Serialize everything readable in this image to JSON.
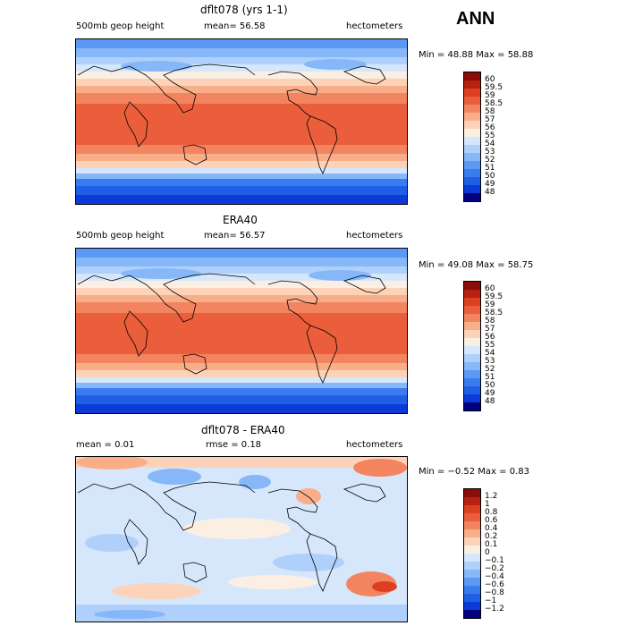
{
  "season": "ANN",
  "colors": {
    "abs_scale": [
      "#000080",
      "#0c3ad6",
      "#1f5fe6",
      "#3a7bf0",
      "#5c99f5",
      "#86b7f8",
      "#afd0fa",
      "#d6e7fc",
      "#fbefe3",
      "#fcd3b8",
      "#f9ae8a",
      "#f38460",
      "#ea5e3c",
      "#dd4020",
      "#b8200f",
      "#8a0d0a"
    ],
    "diff_scale": [
      "#000080",
      "#0c3ad6",
      "#1f5fe6",
      "#3a7bf0",
      "#5c99f5",
      "#86b7f8",
      "#afd0fa",
      "#d6e7fc",
      "#fbefe3",
      "#fcd3b8",
      "#f9ae8a",
      "#f38460",
      "#ea5e3c",
      "#dd4020",
      "#b8200f",
      "#8a0d0a"
    ]
  },
  "panels": [
    {
      "title": "dflt078 (yrs 1-1)",
      "left_label": "500mb geop height",
      "mid_label": "mean=  56.58",
      "units": "hectometers",
      "minmax": "Min =  48.88 Max =  58.88",
      "ticks": [
        "60",
        "59.5",
        "59",
        "58.5",
        "58",
        "57",
        "56",
        "55",
        "54",
        "53",
        "52",
        "51",
        "50",
        "49",
        "48"
      ],
      "kind": "abs"
    },
    {
      "title": "ERA40",
      "left_label": "500mb geop height",
      "mid_label": "mean=  56.57",
      "units": "hectometers",
      "minmax": "Min =  49.08 Max =  58.75",
      "ticks": [
        "60",
        "59.5",
        "59",
        "58.5",
        "58",
        "57",
        "56",
        "55",
        "54",
        "53",
        "52",
        "51",
        "50",
        "49",
        "48"
      ],
      "kind": "abs"
    },
    {
      "title": "dflt078 - ERA40",
      "left_label": "mean =    0.01",
      "mid_label": "rmse =    0.18",
      "units": "hectometers",
      "minmax": "Min =  −0.52 Max =   0.83",
      "ticks": [
        "1.2",
        "1",
        "0.8",
        "0.6",
        "0.4",
        "0.2",
        "0.1",
        "0",
        "−0.1",
        "−0.2",
        "−0.4",
        "−0.6",
        "−0.8",
        "−1",
        "−1.2"
      ],
      "kind": "diff"
    }
  ]
}
